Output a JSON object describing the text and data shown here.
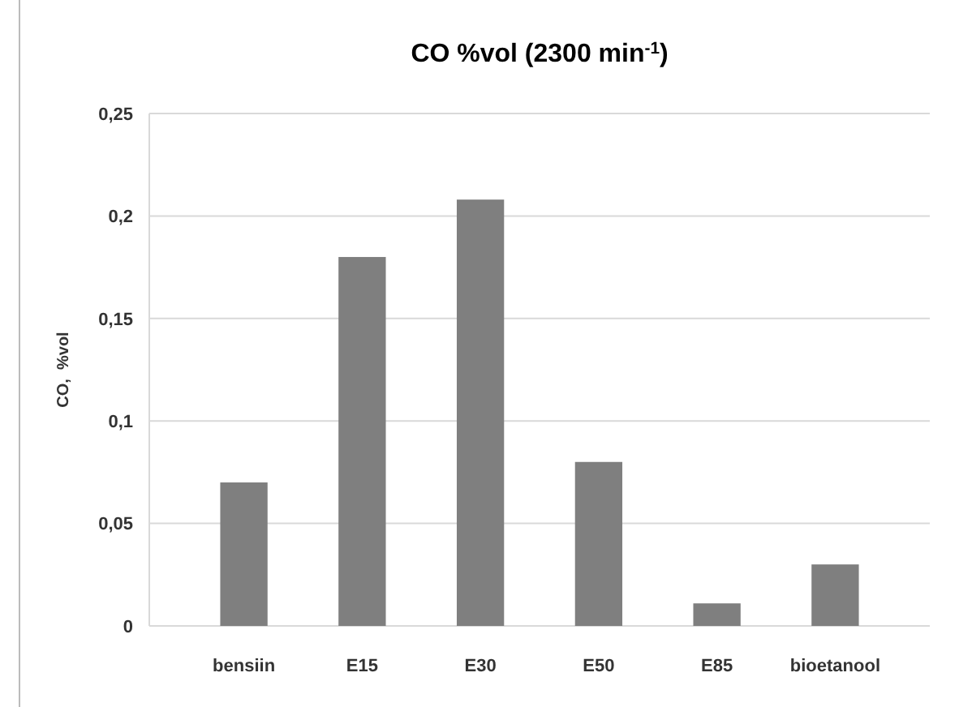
{
  "chart_data": {
    "type": "bar",
    "title": "CO %vol (2300 min$^{-1}$)",
    "ylabel": "CO,  %vol",
    "categories": [
      "bensiin",
      "E15",
      "E30",
      "E50",
      "E85",
      "bioetanool"
    ],
    "values": [
      0.07,
      0.18,
      0.208,
      0.08,
      0.011,
      0.03
    ],
    "color": "#7f7f7f",
    "ylim": [
      0,
      0.25
    ],
    "yticks": [
      {
        "value": 0,
        "label": "0"
      },
      {
        "value": 0.05,
        "label": "0,05"
      },
      {
        "value": 0.1,
        "label": "0,1"
      },
      {
        "value": 0.15,
        "label": "0,15"
      },
      {
        "value": 0.2,
        "label": "0,2"
      },
      {
        "value": 0.25,
        "label": "0,25"
      }
    ],
    "grid": "y"
  }
}
